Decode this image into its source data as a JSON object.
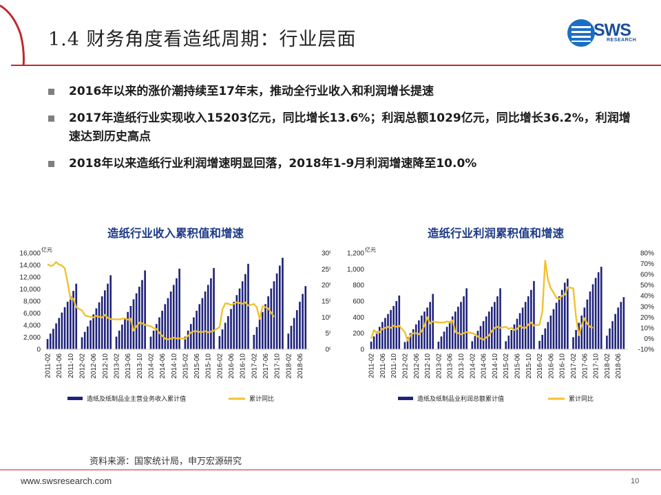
{
  "slide": {
    "title": "1.4 财务角度看造纸周期：行业层面",
    "logo_text": "SWS",
    "logo_sub": "RESEARCH",
    "bullets": [
      "2016年以来的涨价潮持续至17年末，推动全行业收入和利润增长提速",
      "2017年造纸行业实现收入15203亿元，同比增长13.6%；利润总额1029亿元，同比增长36.2%，利润增速达到历史高点",
      "2018年以来造纸行业利润增速明显回落，2018年1-9月利润增速降至10.0%"
    ],
    "source": "资料来源：国家统计局，申万宏源研究",
    "footer_url": "www.swsresearch.com",
    "page_number": "10",
    "colors": {
      "accent_red": "#c0282c",
      "bar_navy": "#1f237a",
      "line_gold": "#f2c12e",
      "title_blue": "#1f3c88"
    }
  },
  "chart_data": [
    {
      "type": "bar+line",
      "title": "造纸行业收入累积值和增速",
      "unit_label": "亿元",
      "y_left_ticks": [
        "0",
        "2,000",
        "4,000",
        "6,000",
        "8,000",
        "10,000",
        "12,000",
        "14,000",
        "16,000"
      ],
      "y_right_ticks": [
        "0%",
        "5%",
        "10%",
        "15%",
        "20%",
        "25%",
        "30%"
      ],
      "ylim_left": [
        0,
        16000
      ],
      "ylim_right": [
        0,
        30
      ],
      "x_tick_labels": [
        "2011-02",
        "2011-06",
        "2011-10",
        "2012-02",
        "2012-06",
        "2012-10",
        "2013-02",
        "2013-06",
        "2013-10",
        "2014-02",
        "2014-06",
        "2014-10",
        "2015-02",
        "2015-06",
        "2015-10",
        "2016-02",
        "2016-06",
        "2016-10",
        "2017-02",
        "2017-06",
        "2017-10",
        "2018-02",
        "2018-06"
      ],
      "year_start": 2011,
      "bar_series_name": "造纸及纸制品业主营业务收入累计值",
      "line_series_name": "累计同比",
      "bars": [
        [
          1700,
          2600,
          3400,
          4300,
          5200,
          6100,
          7000,
          7900,
          8800,
          9700,
          10900
        ],
        [
          2000,
          2900,
          3800,
          4800,
          5800,
          6800,
          7800,
          8800,
          9800,
          10900,
          12300
        ],
        [
          2100,
          3100,
          4100,
          5100,
          6200,
          7200,
          8300,
          9300,
          10400,
          11500,
          13100
        ],
        [
          2100,
          3100,
          4200,
          5300,
          6400,
          7500,
          8500,
          9600,
          10700,
          11800,
          13400
        ],
        [
          2100,
          3100,
          4200,
          5300,
          6400,
          7500,
          8500,
          9600,
          10700,
          11800,
          13500
        ],
        [
          2200,
          3300,
          4400,
          5500,
          6700,
          7900,
          9000,
          10100,
          11300,
          12500,
          14200
        ],
        [
          2400,
          3700,
          5000,
          6200,
          7500,
          8800,
          10100,
          11300,
          12600,
          13900,
          15203
        ],
        [
          2600,
          3900,
          5200,
          6500,
          7900,
          9200,
          10500
        ]
      ],
      "line": [
        26.5,
        26,
        26.2,
        27.2,
        26.4,
        26.1,
        25.2,
        20.8,
        15.6,
        15.8,
        13.1,
        12.1,
        10.6,
        10.3,
        10.1,
        9.9,
        10.4,
        10.1,
        9.9,
        10.7,
        9.8,
        9.4,
        9.3,
        9.3,
        9.5,
        9.6,
        9.2,
        9.5,
        5.8,
        7.1,
        8.3,
        8.1,
        7.6,
        7.2,
        6.6,
        6.3,
        5.1,
        4.2,
        3.3,
        3.1,
        3.3,
        3.6,
        3.4,
        3.4,
        3.3,
        4.2,
        5.2,
        5.6,
        5.6,
        5.4,
        5.4,
        5.6,
        5.3,
        5.5,
        5.8,
        6.9,
        12.4,
        14.3,
        14.2,
        13.8,
        14.2,
        14.6,
        14.4,
        14.2,
        14.6,
        13.6,
        14.1,
        13.1,
        9.4,
        13.4,
        13.1,
        12.7,
        11.4,
        10.1
      ]
    },
    {
      "type": "bar+line",
      "title": "造纸行业利润累积值和增速",
      "unit_label": "亿元",
      "y_left_ticks": [
        "0",
        "200",
        "400",
        "600",
        "800",
        "1,000",
        "1,200"
      ],
      "y_right_ticks": [
        "-10%",
        "0%",
        "10%",
        "20%",
        "30%",
        "40%",
        "50%",
        "60%",
        "70%",
        "80%"
      ],
      "ylim_left": [
        0,
        1200
      ],
      "ylim_right": [
        -10,
        80
      ],
      "x_tick_labels": [
        "2011-02",
        "2011-06",
        "2011-10",
        "2012-02",
        "2012-06",
        "2012-10",
        "2013-02",
        "2013-06",
        "2013-10",
        "2014-02",
        "2014-06",
        "2014-10",
        "2015-02",
        "2015-06",
        "2015-10",
        "2016-02",
        "2016-06",
        "2016-10",
        "2017-02",
        "2017-06",
        "2017-10",
        "2018-02",
        "2018-06"
      ],
      "year_start": 2011,
      "bar_series_name": "造纸及纸制品业利润总额累计值",
      "line_series_name": "累计同比",
      "bars": [
        [
          95,
          160,
          220,
          280,
          340,
          390,
          440,
          490,
          540,
          600,
          670
        ],
        [
          90,
          150,
          200,
          250,
          310,
          360,
          420,
          470,
          520,
          590,
          690
        ],
        [
          95,
          160,
          220,
          280,
          350,
          410,
          470,
          530,
          590,
          660,
          760
        ],
        [
          100,
          165,
          230,
          290,
          350,
          410,
          470,
          530,
          590,
          660,
          760
        ],
        [
          100,
          170,
          240,
          310,
          380,
          450,
          520,
          590,
          660,
          740,
          850
        ],
        [
          105,
          180,
          260,
          340,
          420,
          500,
          580,
          660,
          740,
          830,
          880
        ],
        [
          150,
          240,
          330,
          420,
          520,
          620,
          720,
          810,
          890,
          960,
          1029
        ],
        [
          170,
          260,
          350,
          440,
          520,
          590,
          650
        ]
      ],
      "line": [
        0,
        8,
        5,
        6,
        9,
        10,
        11,
        10,
        12,
        11,
        12,
        6,
        -2,
        3,
        5,
        5,
        4,
        7,
        12,
        20,
        14,
        16,
        15,
        15,
        15,
        16,
        15,
        17,
        6,
        5,
        4,
        5,
        6,
        5,
        4,
        2,
        0,
        -1,
        1,
        3,
        7,
        10,
        11,
        10,
        11,
        9,
        10,
        8,
        9,
        12,
        10,
        10,
        13,
        15,
        12,
        13,
        25,
        73,
        55,
        47,
        43,
        38,
        37,
        40,
        41,
        48,
        47,
        20,
        3,
        12,
        19,
        14,
        11,
        10
      ]
    }
  ]
}
